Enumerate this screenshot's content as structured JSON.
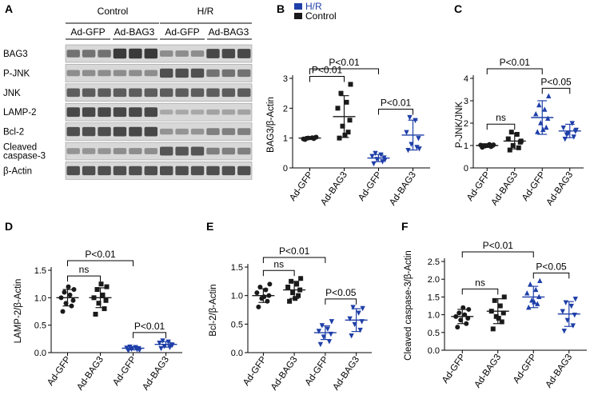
{
  "colors": {
    "control": "#1a1a1a",
    "hr": "#1f3fa8",
    "blot_bg": "#d8d8d8",
    "band": "#2a2a2a"
  },
  "panel_a": {
    "label": "A",
    "groups": [
      "Control",
      "H/R"
    ],
    "subgroups": [
      "Ad-GFP",
      "Ad-BAG3",
      "Ad-GFP",
      "Ad-BAG3"
    ],
    "rows": [
      {
        "name": "BAG3",
        "intensity": [
          0.55,
          0.55,
          0.55,
          0.95,
          0.95,
          0.95,
          0.35,
          0.35,
          0.35,
          0.85,
          0.85,
          0.85
        ]
      },
      {
        "name": "P-JNK",
        "intensity": [
          0.35,
          0.35,
          0.35,
          0.35,
          0.35,
          0.35,
          0.8,
          0.8,
          0.8,
          0.55,
          0.55,
          0.55
        ]
      },
      {
        "name": "JNK",
        "intensity": [
          0.7,
          0.7,
          0.7,
          0.7,
          0.7,
          0.7,
          0.7,
          0.7,
          0.7,
          0.7,
          0.7,
          0.7
        ]
      },
      {
        "name": "LAMP-2",
        "intensity": [
          0.85,
          0.85,
          0.85,
          0.85,
          0.85,
          0.85,
          0.15,
          0.15,
          0.15,
          0.2,
          0.2,
          0.2
        ]
      },
      {
        "name": "Bcl-2",
        "intensity": [
          0.8,
          0.8,
          0.8,
          0.85,
          0.85,
          0.85,
          0.3,
          0.3,
          0.3,
          0.45,
          0.45,
          0.45
        ]
      },
      {
        "name": "Cleaved\ncaspase-3",
        "intensity": [
          0.3,
          0.3,
          0.3,
          0.35,
          0.35,
          0.35,
          0.75,
          0.75,
          0.75,
          0.45,
          0.45,
          0.45
        ]
      },
      {
        "name": "β-Actin",
        "intensity": [
          0.8,
          0.8,
          0.8,
          0.8,
          0.8,
          0.8,
          0.8,
          0.8,
          0.8,
          0.8,
          0.8,
          0.8
        ]
      }
    ]
  },
  "legend": {
    "hr": "H/R",
    "control": "Control"
  },
  "chart_data": [
    {
      "panel": "B",
      "type": "scatter",
      "ylabel": "BAG3/β-Actin",
      "ylim": [
        0,
        3
      ],
      "yticks": [
        0,
        1,
        2,
        3
      ],
      "categories": [
        "Ad-GFP",
        "Ad-BAG3",
        "Ad-GFP",
        "Ad-BAG3"
      ],
      "groups": [
        "control",
        "control",
        "hr",
        "hr"
      ],
      "markers": [
        "circle",
        "square",
        "triangle-down",
        "triangle-down"
      ],
      "means": [
        1.0,
        1.72,
        0.33,
        1.1
      ],
      "sd": [
        0.05,
        0.7,
        0.12,
        0.5
      ],
      "points": [
        [
          0.95,
          0.98,
          1.0,
          1.02,
          0.97,
          1.01,
          0.99,
          1.03
        ],
        [
          1.0,
          1.2,
          1.4,
          1.6,
          2.0,
          2.2,
          2.5,
          2.8,
          1.1
        ],
        [
          0.15,
          0.22,
          0.3,
          0.35,
          0.4,
          0.45,
          0.5,
          0.28
        ],
        [
          0.6,
          0.7,
          0.8,
          1.0,
          1.2,
          1.6,
          1.7,
          0.65
        ]
      ],
      "brackets": [
        {
          "from": 0,
          "to": 2,
          "label": "P<0.01",
          "level": 2
        },
        {
          "from": 0,
          "to": 1,
          "label": "P<0.01",
          "level": 1
        },
        {
          "from": 2,
          "to": 3,
          "label": "P<0.01",
          "level": 1
        }
      ]
    },
    {
      "panel": "C",
      "type": "scatter",
      "ylabel": "P-JNK/JNK",
      "ylim": [
        0,
        4
      ],
      "yticks": [
        0,
        1,
        2,
        3,
        4
      ],
      "categories": [
        "Ad-GFP",
        "Ad-BAG3",
        "Ad-GFP",
        "Ad-BAG3"
      ],
      "groups": [
        "control",
        "control",
        "hr",
        "hr"
      ],
      "markers": [
        "circle",
        "square",
        "triangle-up",
        "triangle-down"
      ],
      "means": [
        1.0,
        1.2,
        2.25,
        1.65
      ],
      "sd": [
        0.08,
        0.35,
        0.75,
        0.3
      ],
      "points": [
        [
          0.92,
          0.95,
          0.98,
          1.0,
          1.02,
          1.05,
          0.97,
          1.03,
          1.0
        ],
        [
          0.8,
          0.9,
          1.0,
          1.15,
          1.3,
          1.5,
          1.6,
          1.2
        ],
        [
          1.6,
          1.8,
          2.0,
          2.2,
          2.4,
          2.6,
          2.8,
          3.2,
          1.7
        ],
        [
          1.3,
          1.4,
          1.55,
          1.65,
          1.8,
          2.0,
          1.5,
          1.7
        ]
      ],
      "brackets": [
        {
          "from": 0,
          "to": 2,
          "label": "P<0.01",
          "level": 2
        },
        {
          "from": 0,
          "to": 1,
          "label": "ns",
          "level": 1
        },
        {
          "from": 2,
          "to": 3,
          "label": "P<0.05",
          "level": 2
        }
      ]
    },
    {
      "panel": "D",
      "type": "scatter",
      "ylabel": "LAMP-2/β-Actin",
      "ylim": [
        0,
        1.5
      ],
      "yticks": [
        0.0,
        0.5,
        1.0,
        1.5
      ],
      "categories": [
        "Ad-GFP",
        "Ad-BAG3",
        "Ad-GFP",
        "Ad-BAG3"
      ],
      "groups": [
        "control",
        "control",
        "hr",
        "hr"
      ],
      "markers": [
        "circle",
        "square",
        "triangle-down",
        "triangle-down"
      ],
      "means": [
        1.0,
        1.0,
        0.08,
        0.15
      ],
      "sd": [
        0.15,
        0.18,
        0.03,
        0.05
      ],
      "points": [
        [
          0.75,
          0.85,
          0.9,
          0.95,
          1.0,
          1.05,
          1.1,
          1.15,
          1.2
        ],
        [
          0.7,
          0.8,
          0.9,
          0.95,
          1.0,
          1.05,
          1.15,
          1.2,
          1.25
        ],
        [
          0.04,
          0.06,
          0.07,
          0.08,
          0.09,
          0.1,
          0.11,
          0.05
        ],
        [
          0.08,
          0.1,
          0.12,
          0.15,
          0.18,
          0.2,
          0.22,
          0.14
        ]
      ],
      "brackets": [
        {
          "from": 0,
          "to": 2,
          "label": "P<0.01",
          "level": 2
        },
        {
          "from": 0,
          "to": 1,
          "label": "ns",
          "level": 1
        },
        {
          "from": 2,
          "to": 3,
          "label": "P<0.01",
          "level": 2
        }
      ]
    },
    {
      "panel": "E",
      "type": "scatter",
      "ylabel": "Bcl-2/β-Actin",
      "ylim": [
        0,
        1.5
      ],
      "yticks": [
        0.0,
        0.5,
        1.0,
        1.5
      ],
      "categories": [
        "Ad-GFP",
        "Ad-BAG3",
        "Ad-GFP",
        "Ad-BAG3"
      ],
      "groups": [
        "control",
        "control",
        "hr",
        "hr"
      ],
      "markers": [
        "circle",
        "square",
        "triangle-down",
        "triangle-down"
      ],
      "means": [
        1.0,
        1.1,
        0.35,
        0.57
      ],
      "sd": [
        0.12,
        0.15,
        0.12,
        0.2
      ],
      "points": [
        [
          0.8,
          0.9,
          0.95,
          1.0,
          1.05,
          1.1,
          1.15,
          1.2,
          0.98
        ],
        [
          0.9,
          1.0,
          1.05,
          1.1,
          1.15,
          1.2,
          1.25,
          1.3,
          0.95
        ],
        [
          0.15,
          0.2,
          0.28,
          0.33,
          0.38,
          0.42,
          0.48,
          0.55
        ],
        [
          0.3,
          0.4,
          0.5,
          0.55,
          0.6,
          0.7,
          0.8,
          0.78
        ]
      ],
      "brackets": [
        {
          "from": 0,
          "to": 2,
          "label": "P<0.01",
          "level": 2
        },
        {
          "from": 0,
          "to": 1,
          "label": "ns",
          "level": 1
        },
        {
          "from": 2,
          "to": 3,
          "label": "P<0.05",
          "level": 2
        }
      ]
    },
    {
      "panel": "F",
      "type": "scatter",
      "ylabel": "Cleaved caspase-3/β-Actin",
      "ylim": [
        0,
        2.5
      ],
      "yticks": [
        0.0,
        0.5,
        1.0,
        1.5,
        2.0,
        2.5
      ],
      "categories": [
        "Ad-GFP",
        "Ad-BAG3",
        "Ad-GFP",
        "Ad-BAG3"
      ],
      "groups": [
        "control",
        "control",
        "hr",
        "hr"
      ],
      "markers": [
        "circle",
        "square",
        "triangle-up",
        "triangle-down"
      ],
      "means": [
        0.95,
        1.1,
        1.5,
        1.02
      ],
      "sd": [
        0.2,
        0.35,
        0.3,
        0.35
      ],
      "points": [
        [
          0.65,
          0.75,
          0.85,
          0.9,
          0.95,
          1.0,
          1.05,
          1.15,
          1.2
        ],
        [
          0.6,
          0.8,
          0.95,
          1.05,
          1.1,
          1.25,
          1.4,
          1.5,
          0.9
        ],
        [
          1.2,
          1.3,
          1.4,
          1.5,
          1.6,
          1.7,
          1.85,
          1.95,
          1.35
        ],
        [
          0.55,
          0.7,
          0.85,
          1.0,
          1.1,
          1.25,
          1.35,
          1.45
        ]
      ],
      "brackets": [
        {
          "from": 0,
          "to": 2,
          "label": "P<0.01",
          "level": 2
        },
        {
          "from": 0,
          "to": 1,
          "label": "ns",
          "level": 1
        },
        {
          "from": 2,
          "to": 3,
          "label": "P<0.05",
          "level": 2
        }
      ]
    }
  ]
}
